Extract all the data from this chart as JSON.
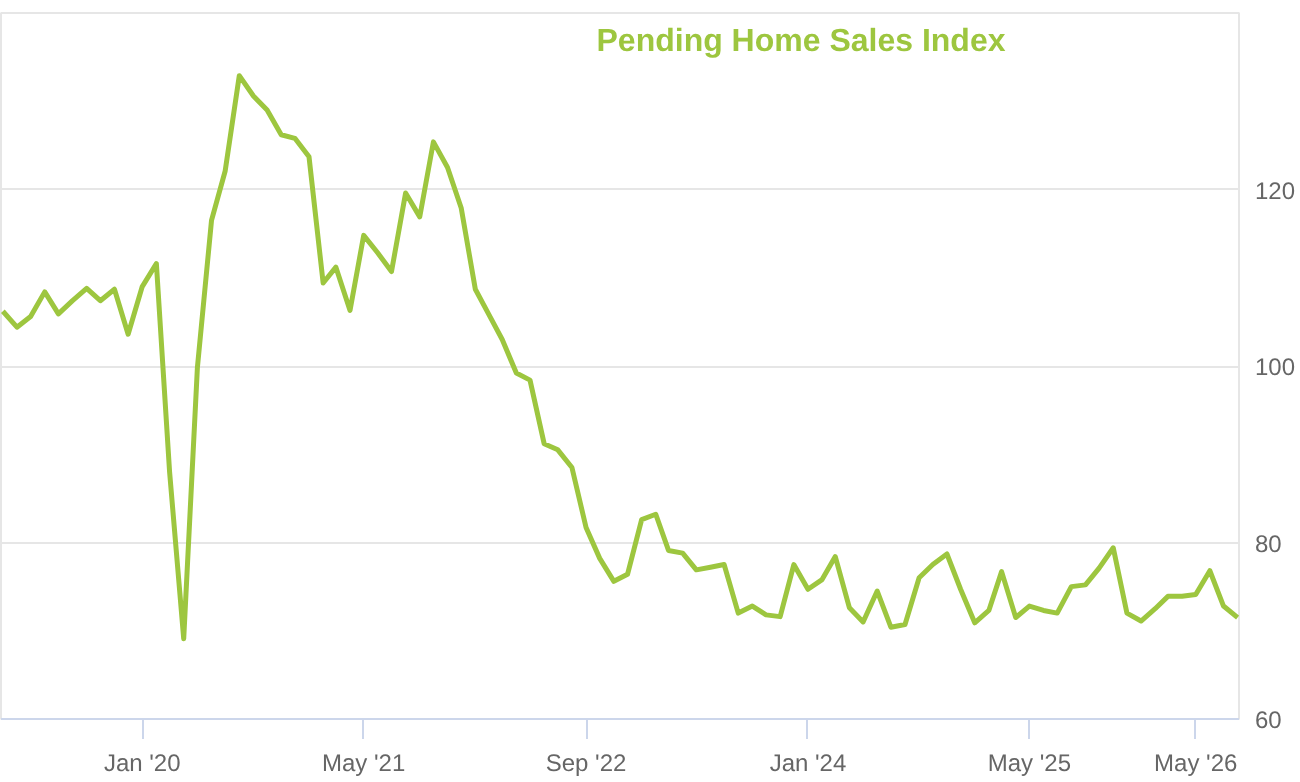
{
  "chart_data": {
    "type": "line",
    "title": "Pending Home Sales Index",
    "x": [
      "2019-03",
      "2019-04",
      "2019-05",
      "2019-06",
      "2019-07",
      "2019-08",
      "2019-09",
      "2019-10",
      "2019-11",
      "2019-12",
      "2020-01",
      "2020-02",
      "2020-03",
      "2020-04",
      "2020-05",
      "2020-06",
      "2020-07",
      "2020-08",
      "2020-09",
      "2020-10",
      "2020-11",
      "2020-12",
      "2021-01",
      "2021-02",
      "2021-03",
      "2021-04",
      "2021-05",
      "2021-06",
      "2021-07",
      "2021-08",
      "2021-09",
      "2021-10",
      "2021-11",
      "2021-12",
      "2022-01",
      "2022-02",
      "2022-03",
      "2022-04",
      "2022-05",
      "2022-06",
      "2022-07",
      "2022-08",
      "2022-09",
      "2022-10",
      "2022-11",
      "2022-12",
      "2023-01",
      "2023-02",
      "2023-03",
      "2023-04",
      "2023-05",
      "2023-06",
      "2023-07",
      "2023-08",
      "2023-09",
      "2023-10",
      "2023-11",
      "2023-12",
      "2024-01",
      "2024-02",
      "2024-03",
      "2024-04",
      "2024-05",
      "2024-06",
      "2024-07",
      "2024-08",
      "2024-09",
      "2024-10",
      "2024-11",
      "2024-12",
      "2025-01",
      "2025-02",
      "2025-03",
      "2025-04",
      "2025-05",
      "2025-06",
      "2025-07",
      "2025-08",
      "2025-09",
      "2025-10",
      "2025-11",
      "2025-12",
      "2026-01",
      "2026-02",
      "2026-03",
      "2026-04",
      "2026-05",
      "2026-06",
      "2026-07",
      "2026-08"
    ],
    "series": [
      {
        "color": "#9dc63f",
        "values": [
          106.2,
          104.4,
          105.6,
          108.4,
          105.9,
          107.4,
          108.8,
          107.4,
          108.7,
          103.6,
          109.0,
          111.6,
          88.0,
          69.1,
          99.8,
          116.5,
          122.1,
          132.9,
          130.6,
          129.0,
          126.2,
          125.8,
          123.7,
          109.4,
          111.2,
          106.3,
          114.8,
          112.8,
          110.7,
          119.6,
          116.9,
          125.4,
          122.5,
          117.9,
          108.7,
          105.7,
          103.0,
          99.2,
          98.4,
          91.2,
          90.5,
          88.5,
          81.7,
          78.2,
          75.6,
          76.4,
          82.6,
          83.2,
          79.1,
          78.8,
          76.9,
          77.2,
          77.5,
          72.0,
          72.8,
          71.8,
          71.6,
          77.5,
          74.7,
          75.8,
          78.4,
          72.6,
          71.0,
          74.5,
          70.4,
          70.7,
          76.0,
          77.5,
          78.7,
          74.7,
          70.9,
          72.3,
          76.7,
          71.5,
          72.8,
          72.3,
          72.0,
          75.0,
          75.2,
          77.1,
          79.4,
          72.0,
          71.1,
          72.5,
          73.9,
          73.9,
          74.1,
          76.8,
          72.8,
          71.5
        ]
      }
    ],
    "xlim": [
      "2019-02-25",
      "2026-08-04"
    ],
    "xticks": [
      {
        "value": "2020-01",
        "label": "Jan '20"
      },
      {
        "value": "2021-05",
        "label": "May '21"
      },
      {
        "value": "2022-09",
        "label": "Sep '22"
      },
      {
        "value": "2024-01",
        "label": "Jan '24"
      },
      {
        "value": "2025-05",
        "label": "May '25"
      },
      {
        "value": "2026-05",
        "label": "May '26"
      }
    ],
    "ylim": [
      60,
      140
    ],
    "yticks": [
      60,
      80,
      100,
      120,
      {
        "value": 140,
        "label": null
      }
    ],
    "grid": "y",
    "line_style": "solid",
    "marker": "none"
  }
}
